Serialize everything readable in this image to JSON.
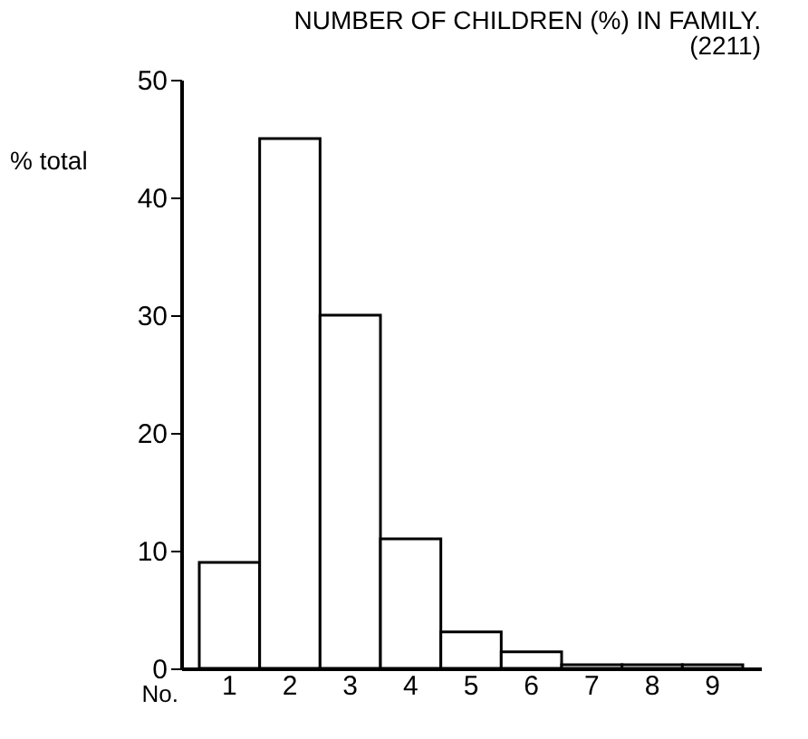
{
  "chart_data": {
    "type": "bar",
    "title": "NUMBER OF CHILDREN (%) IN FAMILY.",
    "subtitle": "(2211)",
    "xlabel": "No.",
    "ylabel": "% total",
    "categories": [
      "1",
      "2",
      "3",
      "4",
      "5",
      "6",
      "7",
      "8",
      "9"
    ],
    "values": [
      9,
      45,
      30,
      11,
      3.1,
      1.4,
      0.3,
      0.3,
      0.3
    ],
    "color": "#ffffff",
    "ylim": [
      0,
      50
    ],
    "yticks": [
      0,
      10,
      20,
      30,
      40,
      50
    ]
  }
}
